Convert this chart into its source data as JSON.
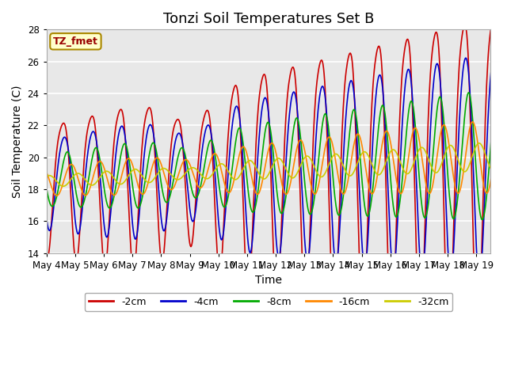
{
  "title": "Tonzi Soil Temperatures Set B",
  "xlabel": "Time",
  "ylabel": "Soil Temperature (C)",
  "annotation": "TZ_fmet",
  "ylim": [
    14,
    28
  ],
  "legend": [
    {
      "label": "-2cm",
      "color": "#cc0000"
    },
    {
      "label": "-4cm",
      "color": "#0000cc"
    },
    {
      "label": "-8cm",
      "color": "#00aa00"
    },
    {
      "label": "-16cm",
      "color": "#ff8800"
    },
    {
      "label": "-32cm",
      "color": "#cccc00"
    }
  ],
  "background_color": "#e8e8e8",
  "title_fontsize": 13,
  "axis_fontsize": 10,
  "tick_fontsize": 8.5,
  "grid_color": "#ffffff",
  "annotation_bg": "#ffffcc",
  "annotation_border": "#aa8800",
  "figsize": [
    6.4,
    4.8
  ],
  "dpi": 100
}
